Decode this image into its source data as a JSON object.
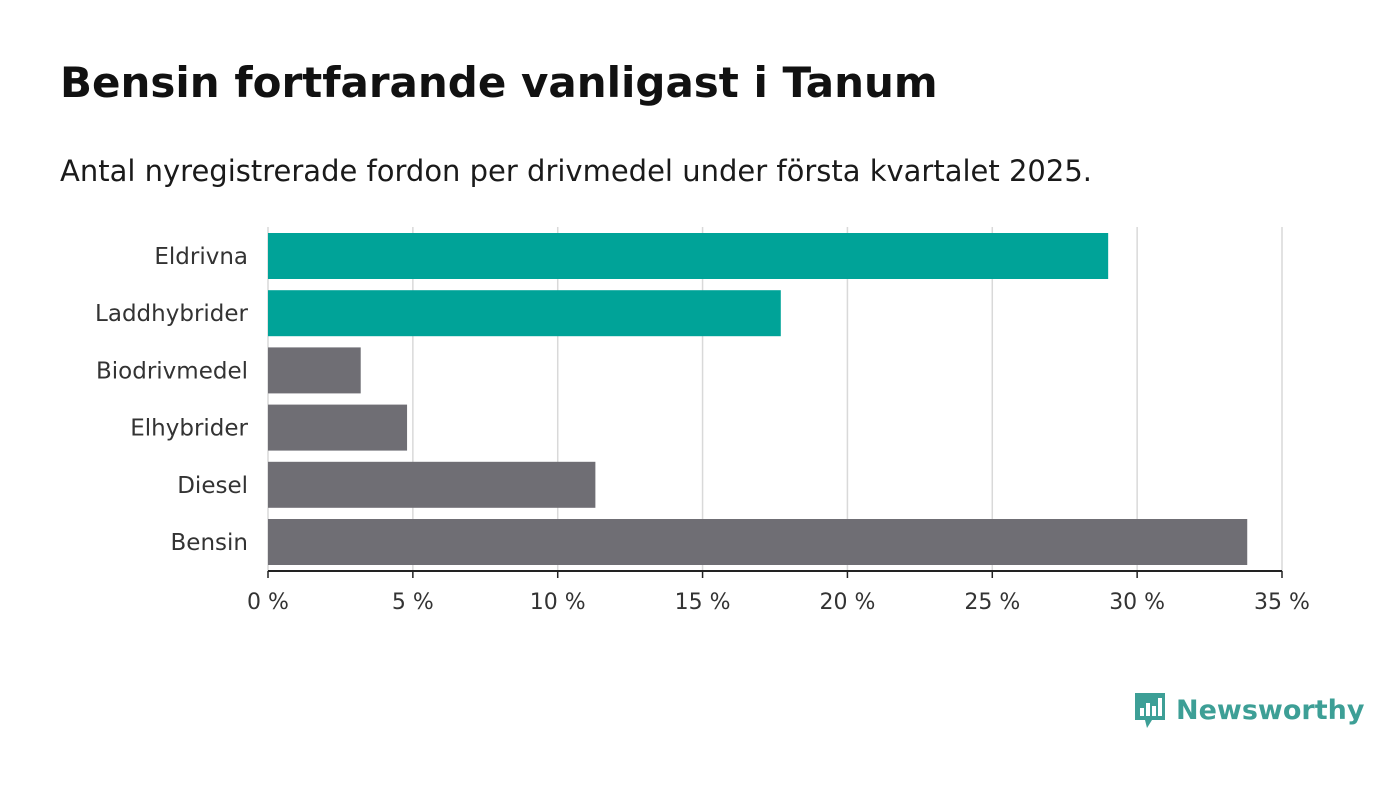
{
  "title": "Bensin fortfarande vanligast i Tanum",
  "subtitle": "Antal nyregistrerade fordon per drivmedel under första kvartalet 2025.",
  "brand": {
    "name": "Newsworthy",
    "icon": "bar-chart-speech-bubble-icon",
    "color": "#3d9f96"
  },
  "colors": {
    "highlight": "#00a398",
    "default": "#6f6e74",
    "grid": "#d9d9d9",
    "axis": "#222222"
  },
  "chart_data": {
    "type": "bar",
    "orientation": "horizontal",
    "categories": [
      "Eldrivna",
      "Laddhybrider",
      "Biodrivmedel",
      "Elhybrider",
      "Diesel",
      "Bensin"
    ],
    "values": [
      29.0,
      17.7,
      3.2,
      4.8,
      11.3,
      33.8
    ],
    "highlighted": [
      "Eldrivna",
      "Laddhybrider"
    ],
    "xlim": [
      0,
      35
    ],
    "xticks": [
      0,
      5,
      10,
      15,
      20,
      25,
      30,
      35
    ],
    "xtick_labels": [
      "0 %",
      "5 %",
      "10 %",
      "15 %",
      "20 %",
      "25 %",
      "30 %",
      "35 %"
    ],
    "grid": true,
    "legend": "none"
  }
}
